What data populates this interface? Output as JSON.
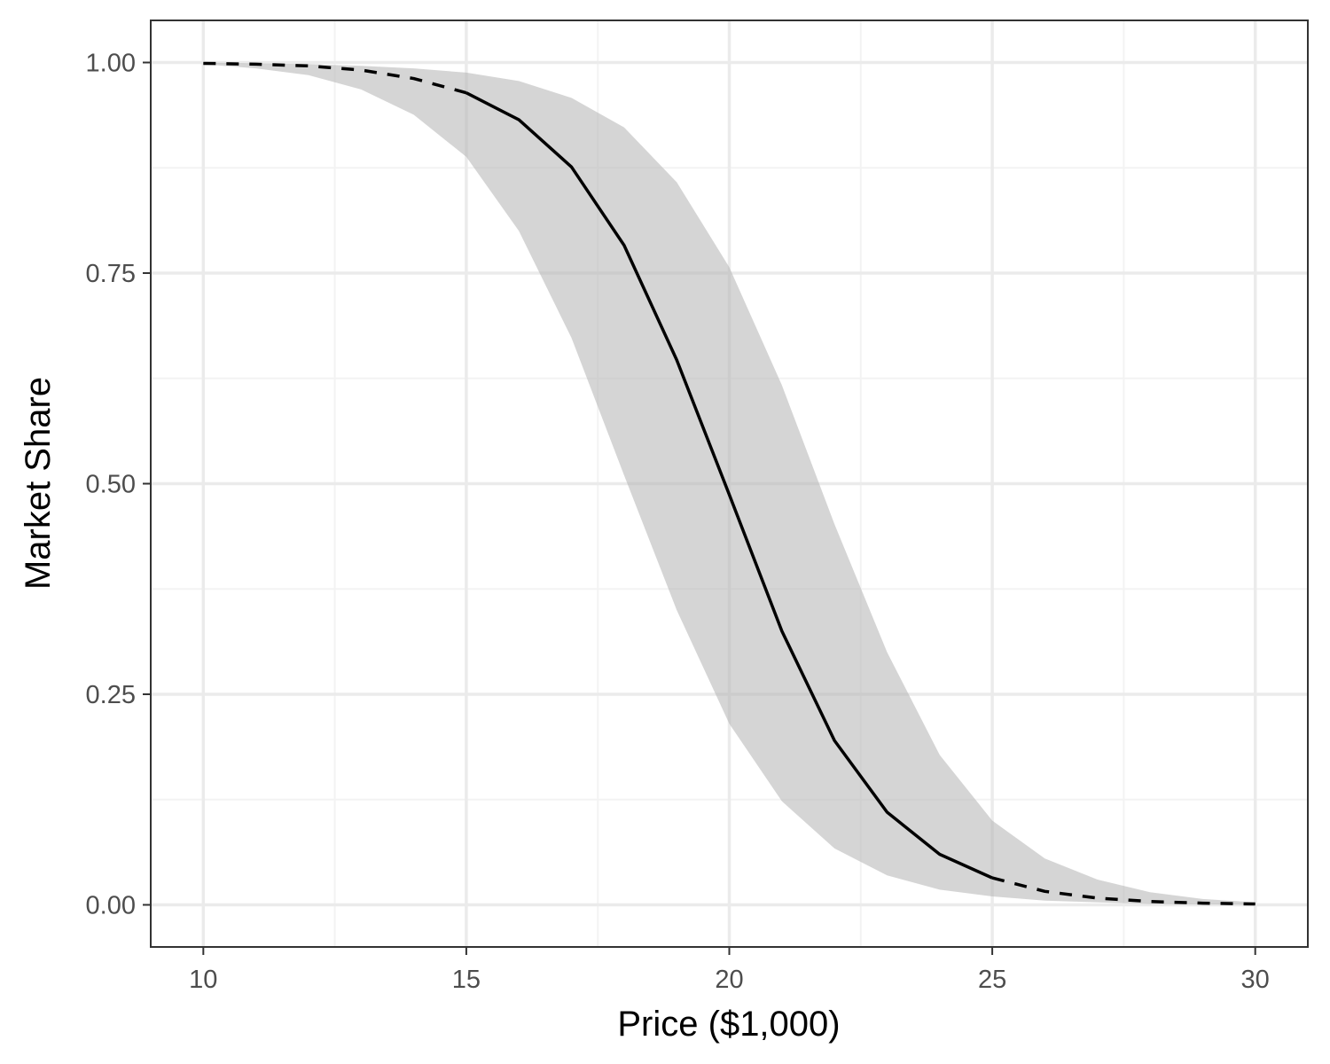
{
  "chart_data": {
    "type": "line",
    "title": "",
    "xlabel": "Price ($1,000)",
    "ylabel": "Market Share",
    "xlim": [
      9,
      31
    ],
    "ylim": [
      -0.05,
      1.05
    ],
    "x_ticks": [
      10,
      15,
      20,
      25,
      30
    ],
    "x_tick_labels": [
      "10",
      "15",
      "20",
      "25",
      "30"
    ],
    "y_ticks": [
      0,
      0.25,
      0.5,
      0.75,
      1.0
    ],
    "y_tick_labels": [
      "0.00",
      "0.25",
      "0.50",
      "0.75",
      "1.00"
    ],
    "x_minor_ticks": [
      12.5,
      17.5,
      22.5,
      27.5
    ],
    "y_minor_ticks": [
      0.125,
      0.375,
      0.625,
      0.875
    ],
    "grid": true,
    "legend": "none",
    "x": [
      10,
      11,
      12,
      13,
      14,
      15,
      16,
      17,
      18,
      19,
      20,
      21,
      22,
      23,
      24,
      25,
      26,
      27,
      28,
      29,
      30
    ],
    "series": [
      {
        "line_style": "dashed",
        "x": [
          10,
          11,
          12,
          13,
          14,
          15
        ],
        "values": [
          0.999,
          0.998,
          0.996,
          0.991,
          0.981,
          0.964
        ]
      },
      {
        "line_style": "solid",
        "x": [
          15,
          16,
          17,
          18,
          19,
          20,
          21,
          22,
          23,
          24,
          25
        ],
        "values": [
          0.964,
          0.932,
          0.876,
          0.783,
          0.647,
          0.487,
          0.325,
          0.195,
          0.11,
          0.06,
          0.032
        ]
      },
      {
        "line_style": "dashed",
        "x": [
          25,
          26,
          27,
          28,
          29,
          30
        ],
        "values": [
          0.032,
          0.016,
          0.008,
          0.004,
          0.002,
          0.001
        ]
      }
    ],
    "band": {
      "x": [
        10,
        11,
        12,
        13,
        14,
        15,
        16,
        17,
        18,
        19,
        20,
        21,
        22,
        23,
        24,
        25,
        26,
        27,
        28,
        29,
        30
      ],
      "lower": [
        0.998,
        0.993,
        0.985,
        0.968,
        0.938,
        0.888,
        0.8,
        0.673,
        0.51,
        0.35,
        0.215,
        0.123,
        0.067,
        0.035,
        0.018,
        0.01,
        0.005,
        0.003,
        0.001,
        0.0005,
        0.0002
      ],
      "upper": [
        1.0,
        0.999,
        0.998,
        0.996,
        0.993,
        0.988,
        0.978,
        0.958,
        0.923,
        0.858,
        0.757,
        0.617,
        0.452,
        0.3,
        0.178,
        0.1,
        0.055,
        0.03,
        0.015,
        0.007,
        0.003
      ]
    },
    "colors": {
      "line": "#000000",
      "band": "#b3b3b3",
      "band_opacity": 0.55,
      "grid_major": "#ebebeb",
      "grid_minor": "#f3f3f3",
      "panel_border": "#333333",
      "tick_text": "#4d4d4d"
    }
  }
}
